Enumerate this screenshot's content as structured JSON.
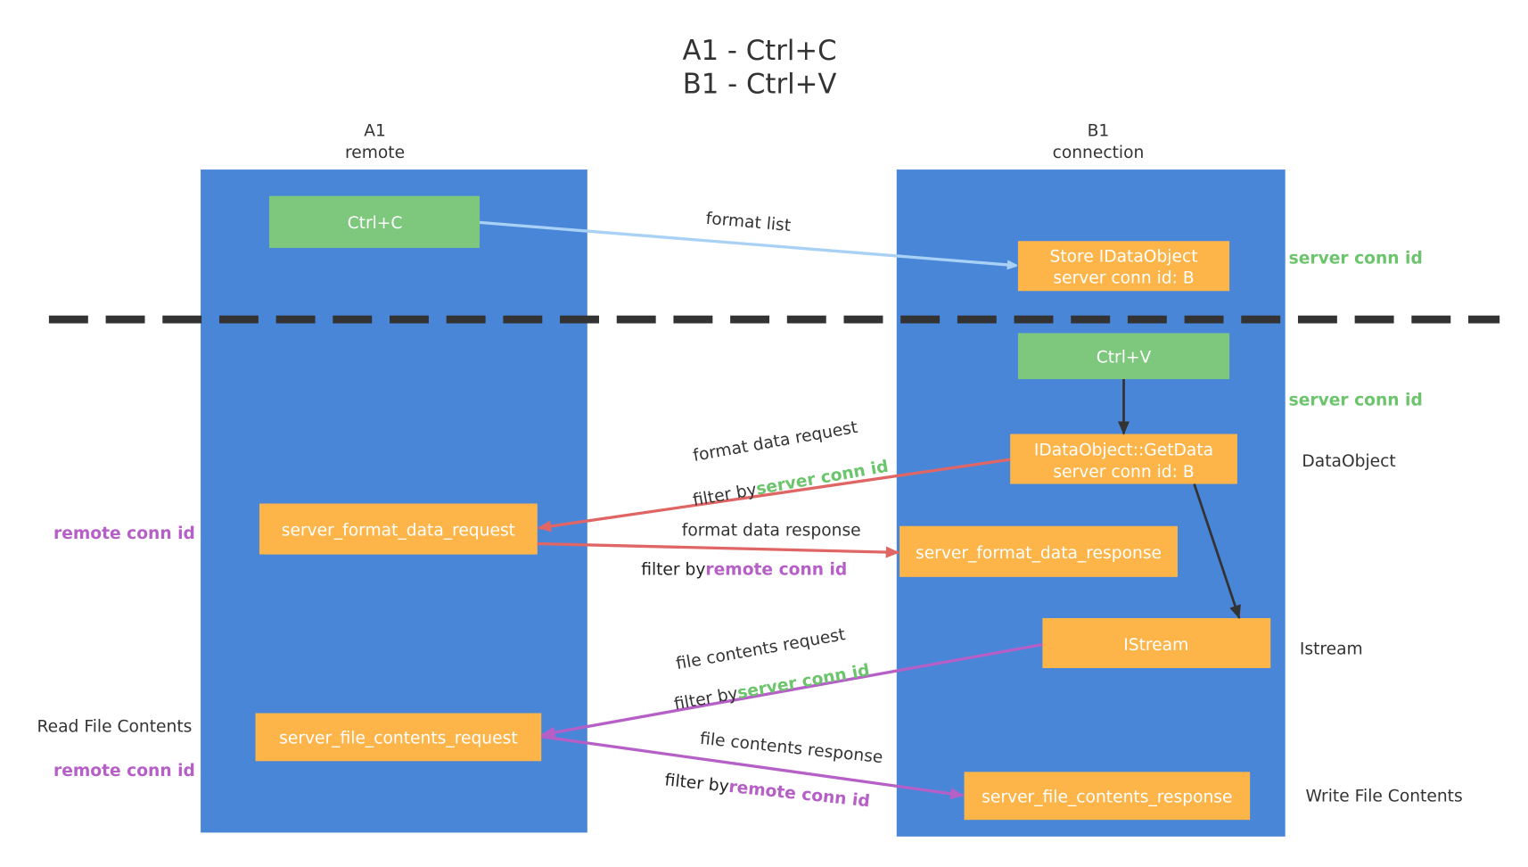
{
  "title": [
    "A1 - Ctrl+C",
    "B1 - Ctrl+V"
  ],
  "columns": {
    "left": {
      "line1": "A1",
      "line2": "remote"
    },
    "right": {
      "line1": "B1",
      "line2": "connection"
    }
  },
  "boxes": {
    "ctrl_c": "Ctrl+C",
    "store": [
      "Store IDataObject",
      "server conn id: B"
    ],
    "ctrl_v": "Ctrl+V",
    "getdata": [
      "IDataObject::GetData",
      "server conn id: B"
    ],
    "fmt_req": "server_format_data_request",
    "fmt_resp": "server_format_data_response",
    "istream": "IStream",
    "file_req": "server_file_contents_request",
    "file_resp": "server_file_contents_response"
  },
  "side_labels": {
    "server_conn_id_1": "server conn id",
    "server_conn_id_2": "server conn id",
    "dataobject": "DataObject",
    "istream": "Istream",
    "write_file": "Write File Contents",
    "remote_conn_id_1": "remote conn id",
    "read_file": "Read File Contents",
    "remote_conn_id_2": "remote conn id"
  },
  "arrows": {
    "format_list": "format list",
    "fmt_data_request": "format data request",
    "fmt_data_request_filter": "filter by",
    "fmt_data_request_filter_id": "server conn id",
    "fmt_data_response": "format data response",
    "fmt_data_response_filter": "filter by",
    "fmt_data_response_filter_id": "remote conn id",
    "file_req": "file contents request",
    "file_req_filter": "filter by",
    "file_req_filter_id": "server conn id",
    "file_resp": "file contents response",
    "file_resp_filter": "filter by",
    "file_resp_filter_id": "remote conn id"
  },
  "colors": {
    "column": "#4a86d8",
    "green": "#7ec87e",
    "orange": "#fdb54a",
    "red": "#e06666",
    "purple": "#b55fc7",
    "lightblue": "#a8d1f5",
    "green_text": "#6cc46c"
  }
}
